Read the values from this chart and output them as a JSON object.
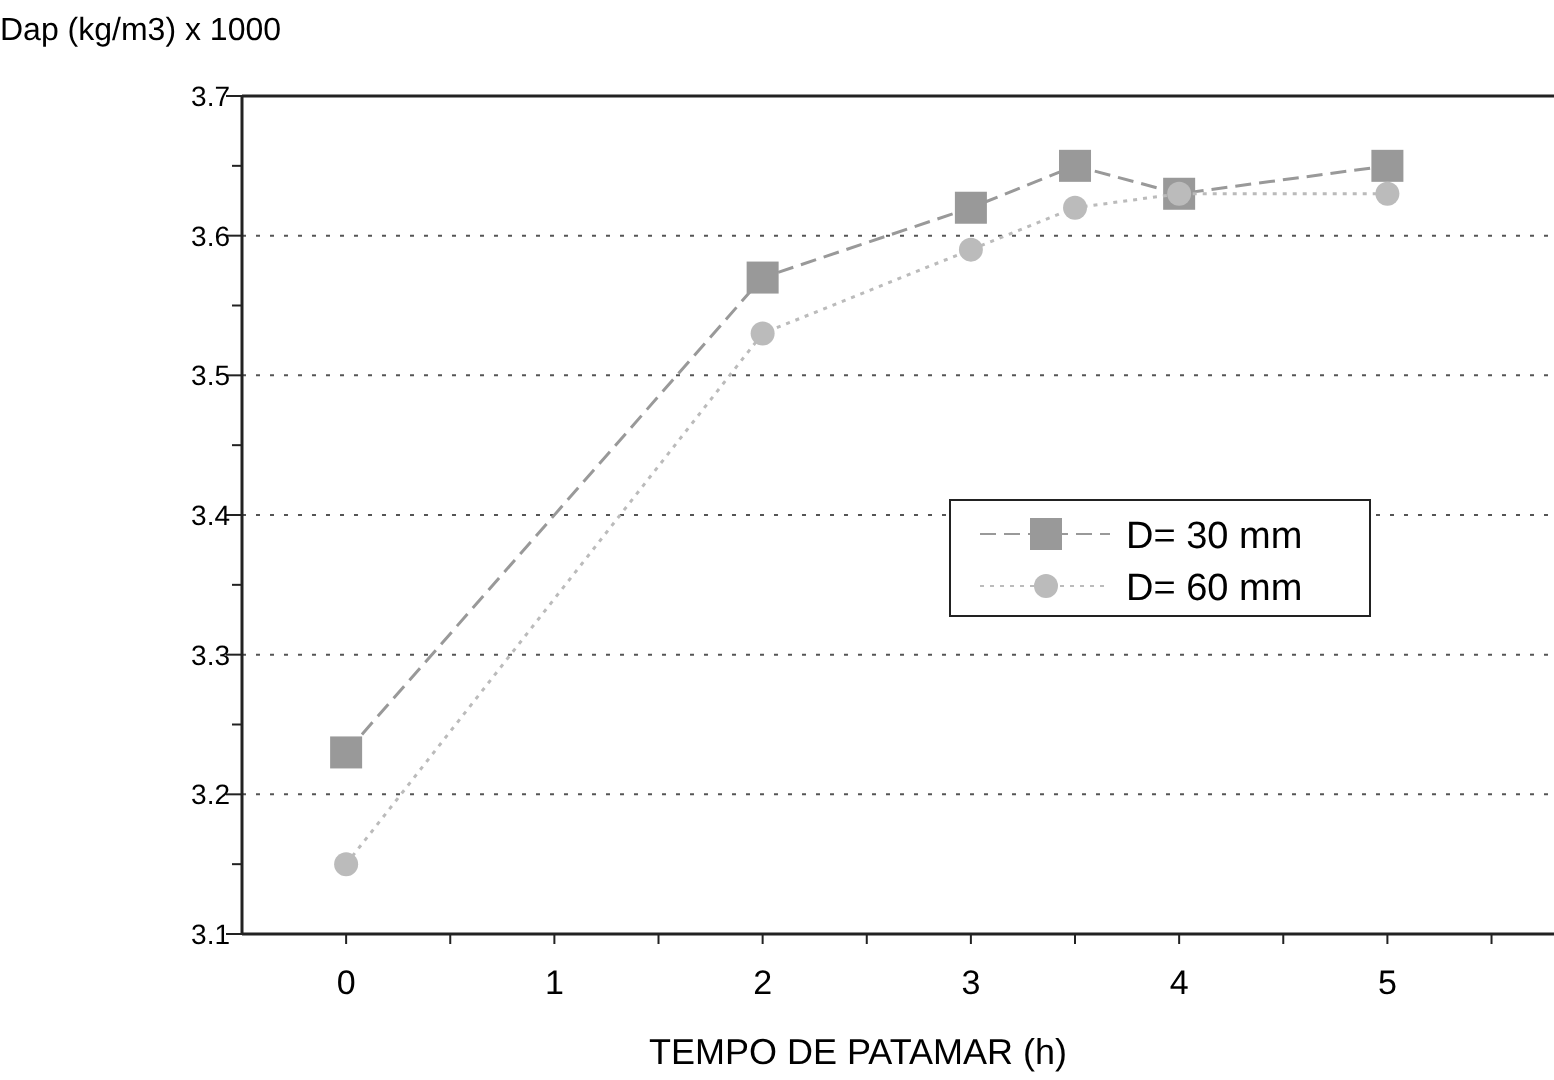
{
  "chart_data": {
    "type": "line",
    "ylabel": "Dap (kg/m3) x 1000",
    "xlabel": "TEMPO DE PATAMAR (h)",
    "x": [
      0,
      2,
      3,
      3.5,
      4,
      5
    ],
    "series": [
      {
        "name": "D= 30 mm",
        "color": "#999999",
        "values": [
          3.23,
          3.57,
          3.62,
          3.65,
          3.63,
          3.65
        ],
        "marker": "square",
        "line_style": "dashed"
      },
      {
        "name": "D= 60 mm",
        "color": "#bbbbbb",
        "values": [
          3.15,
          3.53,
          3.59,
          3.62,
          3.63,
          3.63
        ],
        "marker": "circle",
        "line_style": "dotted"
      }
    ],
    "xlim": [
      -0.5,
      5.8
    ],
    "xticks": [
      0,
      {
        "value": 0.5,
        "label": null
      },
      1,
      {
        "value": 1.5,
        "label": null
      },
      2,
      {
        "value": 2.5,
        "label": null
      },
      3,
      {
        "value": 3.5,
        "label": null
      },
      4,
      {
        "value": 4.5,
        "label": null
      },
      5,
      {
        "value": 5.5,
        "label": null
      }
    ],
    "ylim": [
      3.1,
      3.7
    ],
    "yticks": [
      3.1,
      {
        "value": 3.15,
        "label": null
      },
      3.2,
      {
        "value": 3.25,
        "label": null
      },
      3.3,
      {
        "value": 3.35,
        "label": null
      },
      3.4,
      {
        "value": 3.45,
        "label": null
      },
      3.5,
      {
        "value": 3.55,
        "label": null
      },
      3.6,
      {
        "value": 3.65,
        "label": null
      },
      3.7
    ],
    "grid": "y",
    "legend": "right"
  }
}
